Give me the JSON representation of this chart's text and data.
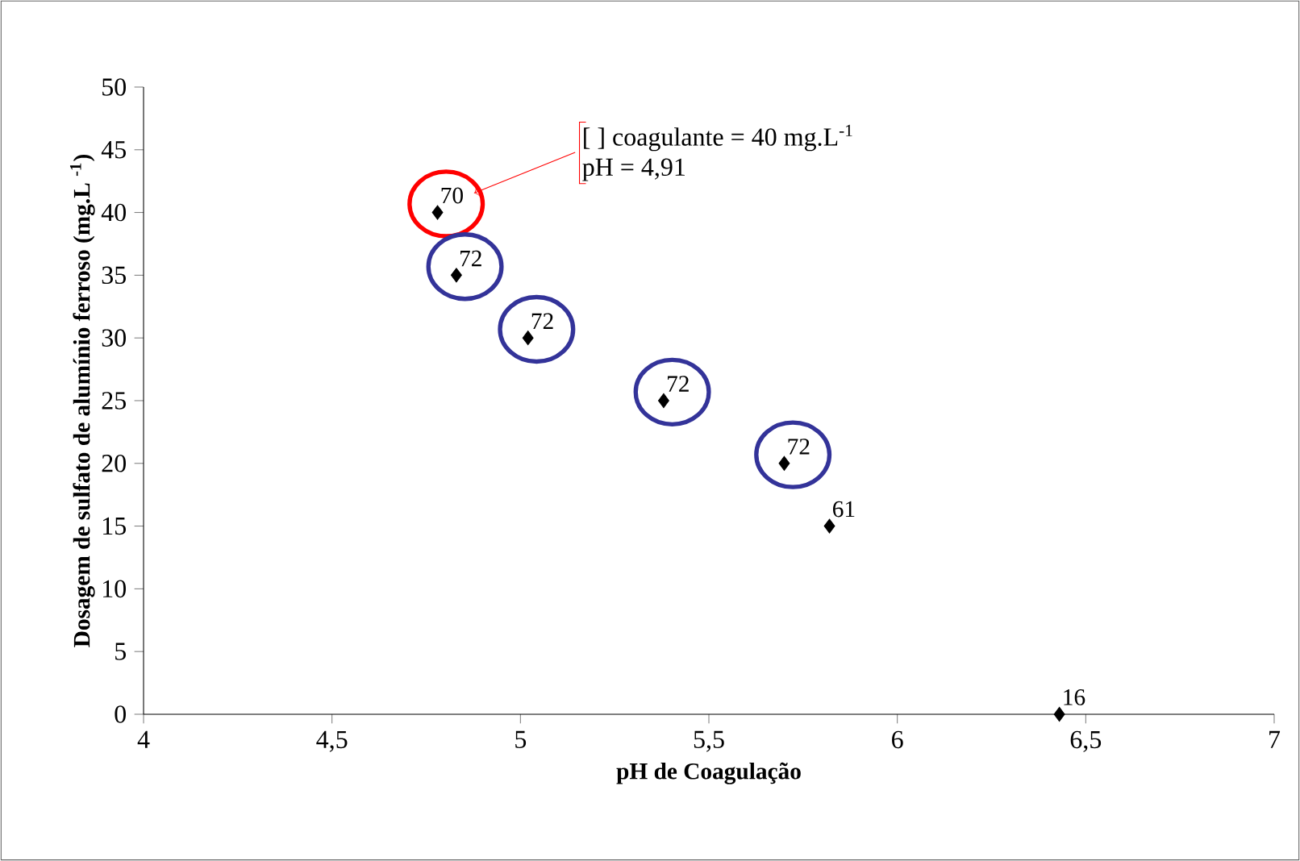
{
  "chart_data": {
    "type": "scatter",
    "xlabel": "pH de Coagulação",
    "ylabel": "Dosagem de sulfato de alumínio ferroso (mg.L $^{-1}$)",
    "x": [
      4.78,
      4.83,
      5.02,
      5.38,
      5.7,
      5.82,
      6.43
    ],
    "values": [
      40,
      35,
      30,
      25,
      20,
      15,
      0
    ],
    "color": "#000000",
    "marker": "diamond",
    "xlim": [
      4,
      7
    ],
    "ylim": [
      0,
      50
    ],
    "xticks": [
      4,
      {
        "value": 4.5,
        "label": "4,5"
      },
      5,
      {
        "value": 5.5,
        "label": "5,5"
      },
      6,
      {
        "value": 6.5,
        "label": "6,5"
      },
      7
    ],
    "yticks": [
      0,
      5,
      10,
      15,
      20,
      25,
      30,
      35,
      40,
      45,
      50
    ],
    "grid": false,
    "annotations": [
      "[ ] coagulante = 40 mg.L$^{-1}$",
      "pH = 4,91",
      {
        "text": "70",
        "x": 4.78,
        "y": 40
      },
      {
        "text": "72",
        "x": 4.83,
        "y": 35
      },
      {
        "text": "72",
        "x": 5.02,
        "y": 30
      },
      {
        "text": "72",
        "x": 5.38,
        "y": 25
      },
      {
        "text": "72",
        "x": 5.7,
        "y": 20
      },
      {
        "text": "61",
        "x": 5.82,
        "y": 15
      },
      {
        "text": "16",
        "x": 6.43,
        "y": 0
      }
    ]
  }
}
